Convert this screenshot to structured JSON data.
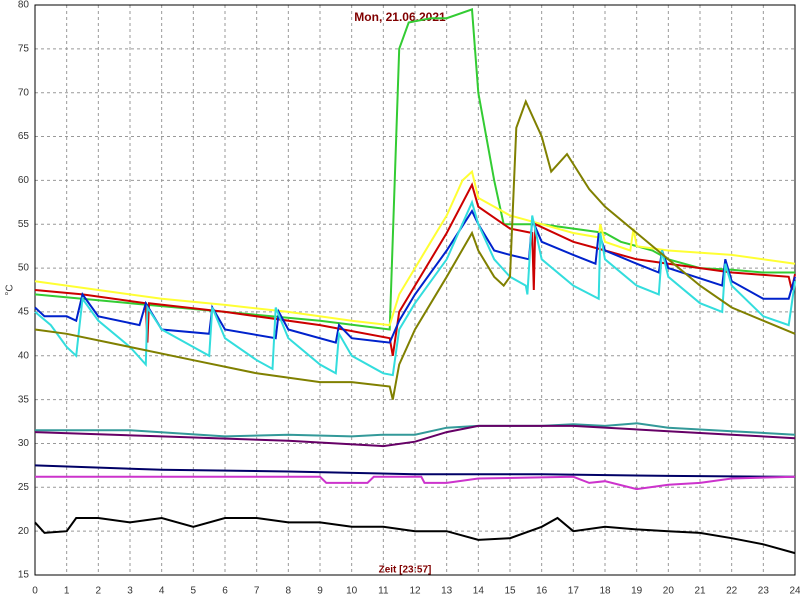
{
  "chart_data": {
    "type": "line",
    "title": "Mon, 21.06.2021",
    "x_label": "Zeit [23:57]",
    "y_label": "°C",
    "xlim": [
      0,
      24
    ],
    "xticks": [
      0,
      1,
      2,
      3,
      4,
      5,
      6,
      7,
      8,
      9,
      10,
      11,
      12,
      13,
      14,
      15,
      16,
      17,
      18,
      19,
      20,
      21,
      22,
      23,
      24
    ],
    "ylim": [
      15,
      80
    ],
    "yticks": [
      15,
      20,
      25,
      30,
      35,
      40,
      45,
      50,
      55,
      60,
      65,
      70,
      75,
      80
    ],
    "grid": true,
    "series": [
      {
        "color": "#33cc33",
        "x": [
          0,
          3,
          6,
          9,
          11.2,
          11.5,
          11.8,
          12.5,
          13,
          13.8,
          14,
          14.5,
          14.8,
          15.5,
          16,
          17,
          18,
          18.5,
          19.5,
          20,
          21,
          22,
          23,
          24
        ],
        "values": [
          47,
          46,
          45,
          44,
          43,
          75,
          78,
          78.5,
          78.5,
          79.5,
          70,
          60,
          55,
          55,
          55,
          54.5,
          54,
          53,
          52,
          51,
          50,
          49.8,
          49.5,
          49.5
        ]
      },
      {
        "color": "#ffff33",
        "x": [
          0,
          2,
          4,
          6,
          8,
          10,
          11.2,
          11.5,
          12,
          12.5,
          13,
          13.5,
          13.8,
          14,
          15,
          16,
          17,
          17.8,
          17.85,
          18,
          18.8,
          18.9,
          19,
          20,
          22,
          24
        ],
        "values": [
          48.5,
          47.5,
          46.5,
          45.8,
          45,
          44,
          43.5,
          47,
          50,
          53,
          56,
          60,
          61,
          58,
          56,
          55,
          54,
          53.5,
          55,
          53,
          52,
          54.5,
          52.5,
          52,
          51.5,
          50.5
        ]
      },
      {
        "color": "#cc0000",
        "x": [
          0,
          1.5,
          3.5,
          3.55,
          3.6,
          6,
          9,
          11.2,
          11.3,
          11.5,
          12,
          13,
          13.8,
          14,
          15,
          15.7,
          15.75,
          15.8,
          17,
          18,
          19,
          20,
          22,
          23.8,
          23.9,
          24
        ],
        "values": [
          47.5,
          47,
          46,
          41.5,
          46,
          45,
          43.5,
          42,
          40,
          45,
          48,
          54,
          59.5,
          57,
          54.5,
          54,
          47.5,
          55,
          53,
          52,
          51,
          50.5,
          49.5,
          49,
          47.5,
          49.3
        ]
      },
      {
        "color": "#0022cc",
        "x": [
          0,
          0.3,
          1,
          1.3,
          1.5,
          2,
          3.3,
          3.5,
          4,
          5.5,
          5.6,
          6,
          7.6,
          7.7,
          8,
          9.5,
          9.6,
          10,
          11.2,
          11.5,
          12,
          13,
          13.8,
          14,
          14.5,
          15,
          15.6,
          15.7,
          16,
          17,
          17.7,
          17.8,
          18,
          19,
          19.7,
          19.8,
          20,
          21.7,
          21.8,
          22,
          23,
          23.8,
          24
        ],
        "values": [
          45.5,
          44.5,
          44.5,
          44,
          47,
          44.5,
          43.5,
          46,
          43,
          42.5,
          45.5,
          43,
          42,
          45,
          43,
          41.5,
          43.5,
          42,
          41.5,
          44,
          47,
          52,
          56.5,
          55,
          52,
          51.5,
          51,
          55.5,
          53,
          51.5,
          50.5,
          54,
          52,
          50.5,
          49.5,
          52,
          50,
          48,
          51,
          48.5,
          46.5,
          46.5,
          49
        ]
      },
      {
        "color": "#33dddd",
        "x": [
          0,
          0.5,
          1,
          1.3,
          1.5,
          2,
          3,
          3.5,
          3.55,
          4,
          5,
          5.5,
          5.6,
          6,
          7,
          7.5,
          7.6,
          8,
          9,
          9.5,
          9.6,
          10,
          11,
          11.3,
          11.5,
          12,
          13,
          13.8,
          14,
          14.5,
          15,
          15.5,
          15.55,
          15.7,
          16,
          17,
          17.8,
          17.85,
          18,
          19,
          19.7,
          19.8,
          20,
          21,
          21.7,
          21.8,
          22,
          23,
          23.8,
          24
        ],
        "values": [
          45,
          43.5,
          41,
          40,
          46.5,
          44,
          41,
          39,
          45.5,
          43,
          41,
          40,
          45.5,
          42,
          39.5,
          38.5,
          45.5,
          42,
          39,
          38,
          42.5,
          40,
          38,
          37.8,
          43,
          46,
          51,
          57.5,
          55,
          51,
          49,
          48,
          47,
          56,
          51,
          48,
          46.5,
          54,
          51,
          48,
          47,
          52,
          49,
          46,
          45,
          50.5,
          48,
          44.5,
          43.5,
          48.5
        ]
      },
      {
        "color": "#808000",
        "x": [
          0,
          1,
          3,
          5,
          7,
          9,
          10,
          11.2,
          11.3,
          11.5,
          12,
          13,
          13.8,
          14,
          14.5,
          14.8,
          15,
          15.2,
          15.5,
          16,
          16.3,
          16.8,
          17.5,
          18,
          19,
          20,
          21,
          22,
          23,
          24
        ],
        "values": [
          43,
          42.5,
          41,
          39.5,
          38,
          37,
          37,
          36.5,
          35,
          39,
          43,
          49,
          54,
          52,
          49,
          48,
          49,
          66,
          69,
          65,
          61,
          63,
          59,
          57,
          54,
          51,
          48,
          45.5,
          44,
          42.5
        ]
      },
      {
        "color": "#339999",
        "x": [
          0,
          3,
          6,
          8,
          10,
          11,
          12,
          13,
          14,
          16,
          17,
          18,
          19,
          20,
          22,
          24
        ],
        "values": [
          31.5,
          31.5,
          30.8,
          31,
          30.8,
          31,
          31,
          31.8,
          32,
          32,
          32.2,
          32,
          32.3,
          31.8,
          31.4,
          31
        ]
      },
      {
        "color": "#660066",
        "x": [
          0,
          4,
          8,
          11,
          12,
          13,
          14,
          17,
          20,
          22,
          24
        ],
        "values": [
          31.3,
          30.8,
          30.3,
          29.7,
          30.2,
          31.3,
          32,
          32,
          31.4,
          31,
          30.6
        ]
      },
      {
        "color": "#000066",
        "x": [
          0,
          4,
          8,
          12,
          16,
          20,
          24
        ],
        "values": [
          27.5,
          27,
          26.8,
          26.5,
          26.5,
          26.3,
          26.2
        ]
      },
      {
        "color": "#cc33cc",
        "x": [
          0,
          9,
          9.2,
          10.5,
          10.7,
          12.2,
          12.3,
          13,
          14,
          17,
          17.5,
          18,
          19,
          20,
          21,
          22,
          24
        ],
        "values": [
          26.2,
          26.2,
          25.5,
          25.5,
          26.2,
          26.2,
          25.5,
          25.5,
          26,
          26.2,
          25.5,
          25.7,
          24.8,
          25.3,
          25.5,
          26,
          26.2
        ]
      },
      {
        "color": "#000000",
        "x": [
          0,
          0.3,
          1,
          1.3,
          2,
          3,
          4,
          5,
          6,
          7,
          8,
          9,
          10,
          11,
          12,
          13,
          14,
          15,
          16,
          16.5,
          17,
          18,
          19,
          20,
          21,
          22,
          23,
          24
        ],
        "values": [
          21,
          19.8,
          20,
          21.5,
          21.5,
          21,
          21.5,
          20.5,
          21.5,
          21.5,
          21,
          21,
          20.5,
          20.5,
          20,
          20,
          19,
          19.2,
          20.5,
          21.5,
          20,
          20.5,
          20.2,
          20,
          19.8,
          19.2,
          18.5,
          17.5
        ]
      }
    ]
  }
}
